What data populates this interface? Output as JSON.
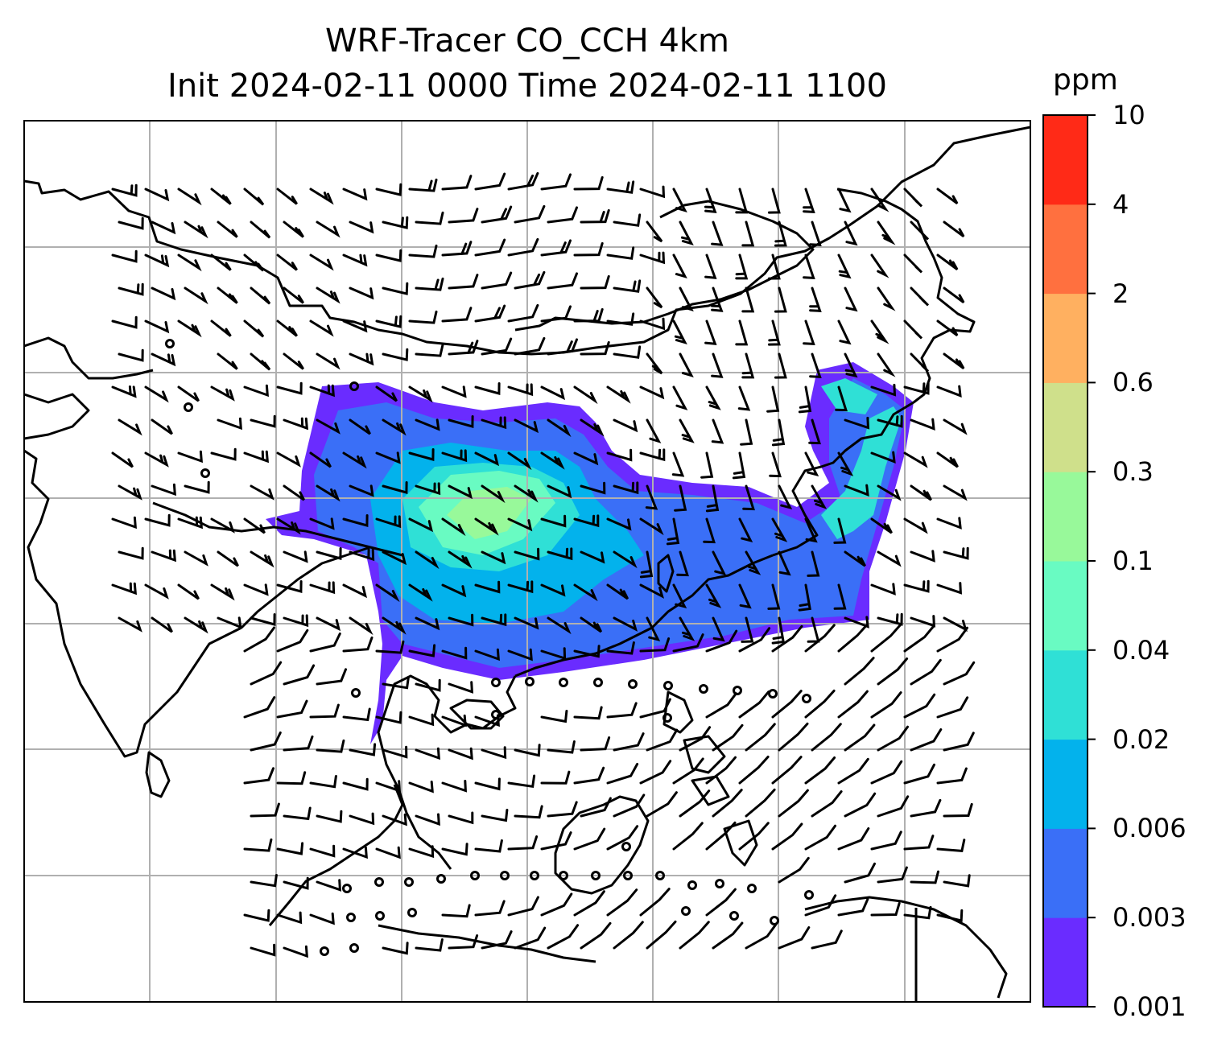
{
  "title": {
    "line1": "WRF-Tracer CO_CCH 4km",
    "line2": "Init 2024-02-11 0000 Time 2024-02-11 1100"
  },
  "colorbar": {
    "unit": "ppm",
    "ticks": [
      "0.001",
      "0.003",
      "0.006",
      "0.02",
      "0.04",
      "0.1",
      "0.3",
      "0.6",
      "2",
      "4",
      "10"
    ],
    "colors": [
      "#6a2cff",
      "#3a6ff7",
      "#03b2ec",
      "#2fe0d6",
      "#69fbc2",
      "#98f99a",
      "#cfe08b",
      "#ffb060",
      "#ff703f",
      "#ff2a17"
    ]
  },
  "map": {
    "fields": [
      "CO tracer concentration (shaded)",
      "wind barbs"
    ],
    "gridlines": true,
    "coastlines": true
  }
}
